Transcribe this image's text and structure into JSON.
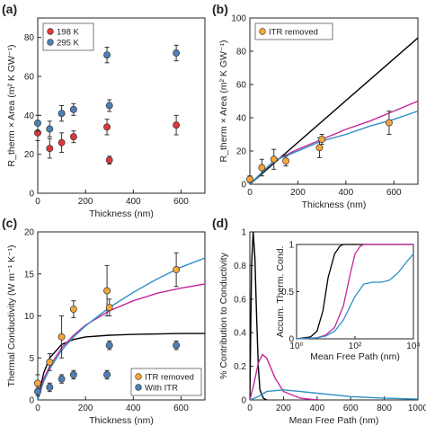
{
  "chart_data": [
    {
      "panel": "a",
      "label": "(a)",
      "type": "scatter",
      "xlabel": "Thickness (nm)",
      "ylabel": "R_therm × Area (m² K GW⁻¹)",
      "xlim": [
        0,
        700
      ],
      "ylim": [
        0,
        90
      ],
      "xticks": [
        0,
        200,
        400,
        600
      ],
      "yticks": [
        0,
        20,
        40,
        60,
        80
      ],
      "legend": "top-left",
      "series": [
        {
          "name": "198 K",
          "color": "#e0353a",
          "marker": "circle",
          "x": [
            0,
            50,
            100,
            150,
            290,
            300,
            580
          ],
          "y": [
            31,
            23,
            26,
            29,
            34,
            17,
            35
          ],
          "err": [
            4,
            5,
            5,
            3,
            4,
            2,
            5
          ]
        },
        {
          "name": "295 K",
          "color": "#4f7fb8",
          "marker": "circle",
          "x": [
            0,
            50,
            100,
            150,
            290,
            300,
            580
          ],
          "y": [
            36,
            33,
            41,
            43,
            71,
            45,
            72
          ],
          "err": [
            4,
            4,
            4,
            3,
            4,
            3,
            4
          ]
        }
      ]
    },
    {
      "panel": "b",
      "label": "(b)",
      "type": "scatter",
      "xlabel": "Thickness (nm)",
      "ylabel": "R_therm × Area (m² K GW⁻¹)",
      "xlim": [
        0,
        700
      ],
      "ylim": [
        0,
        100
      ],
      "xticks": [
        0,
        200,
        400,
        600
      ],
      "yticks": [
        0,
        20,
        40,
        60,
        80,
        100
      ],
      "legend": "top-left",
      "series": [
        {
          "name": "ITR removed",
          "color": "#f5a53a",
          "marker": "circle",
          "x": [
            0,
            50,
            100,
            150,
            290,
            300,
            580
          ],
          "y": [
            3,
            10,
            15,
            14,
            22,
            27,
            37
          ],
          "err": [
            2,
            5,
            6,
            3,
            6,
            3,
            7
          ]
        }
      ],
      "lines": [
        {
          "color": "#000000",
          "x": [
            0,
            700
          ],
          "y": [
            0,
            88
          ]
        },
        {
          "color": "#c2279c",
          "x": [
            0,
            100,
            200,
            300,
            400,
            500,
            600,
            700
          ],
          "y": [
            0,
            14,
            21,
            27,
            33,
            38,
            44,
            50
          ]
        },
        {
          "color": "#2f8fc8",
          "x": [
            0,
            100,
            200,
            300,
            400,
            500,
            600,
            700
          ],
          "y": [
            0,
            14,
            20,
            26,
            30,
            35,
            39,
            44
          ]
        }
      ]
    },
    {
      "panel": "c",
      "label": "(c)",
      "type": "scatter",
      "xlabel": "Thickness (nm)",
      "ylabel": "Thermal Conductivity (W m⁻¹ K⁻¹)",
      "xlim": [
        0,
        700
      ],
      "ylim": [
        0,
        20
      ],
      "xticks": [
        0,
        200,
        400,
        600
      ],
      "yticks": [
        0,
        5,
        10,
        15,
        20
      ],
      "legend": "bottom-right",
      "series": [
        {
          "name": "ITR removed",
          "color": "#f5a53a",
          "marker": "circle",
          "x": [
            0,
            50,
            100,
            150,
            290,
            300,
            580
          ],
          "y": [
            2,
            4.5,
            7.5,
            10.8,
            13,
            11,
            15.5
          ],
          "err": [
            1,
            1,
            2.5,
            1,
            3,
            1,
            2
          ]
        },
        {
          "name": "With ITR",
          "color": "#4f7fb8",
          "marker": "circle",
          "x": [
            0,
            50,
            100,
            150,
            290,
            300,
            580
          ],
          "y": [
            1,
            1.5,
            2.5,
            3,
            3,
            6.5,
            6.5
          ],
          "err": [
            0.5,
            0.5,
            0.5,
            0.5,
            0.5,
            0.5,
            0.5
          ]
        }
      ],
      "lines": [
        {
          "color": "#000000",
          "x": [
            0,
            25,
            50,
            100,
            150,
            200,
            300,
            400,
            500,
            600,
            700
          ],
          "y": [
            0,
            3.2,
            5,
            6.6,
            7.2,
            7.5,
            7.7,
            7.8,
            7.85,
            7.9,
            7.9
          ]
        },
        {
          "color": "#c2279c",
          "x": [
            0,
            25,
            50,
            100,
            150,
            200,
            300,
            400,
            500,
            600,
            700
          ],
          "y": [
            0,
            2.5,
            4,
            6.2,
            7.7,
            8.9,
            10.6,
            11.8,
            12.7,
            13.3,
            13.8
          ]
        },
        {
          "color": "#2f8fc8",
          "x": [
            0,
            25,
            50,
            100,
            150,
            200,
            300,
            400,
            500,
            600,
            700
          ],
          "y": [
            0,
            2.2,
            3.7,
            5.9,
            7.5,
            8.8,
            11,
            12.8,
            14.4,
            15.8,
            16.9
          ]
        }
      ]
    },
    {
      "panel": "d",
      "label": "(d)",
      "type": "line",
      "xlabel": "Mean Free Path (nm)",
      "ylabel": "% Contribution to Conductivity",
      "xlim": [
        0,
        1000
      ],
      "ylim": [
        0,
        1
      ],
      "xticks": [
        0,
        200,
        400,
        600,
        800,
        1000
      ],
      "yticks": [
        0,
        0.2,
        0.4,
        0.6,
        0.8,
        1
      ],
      "lines": [
        {
          "color": "#000000",
          "x": [
            0,
            10,
            20,
            30,
            40,
            50,
            60,
            80,
            100
          ],
          "y": [
            0,
            0.8,
            1.0,
            0.85,
            0.5,
            0.2,
            0.06,
            0.01,
            0
          ]
        },
        {
          "color": "#c2279c",
          "x": [
            0,
            25,
            50,
            75,
            100,
            125,
            150,
            200,
            300,
            400
          ],
          "y": [
            0,
            0.1,
            0.22,
            0.27,
            0.25,
            0.19,
            0.13,
            0.05,
            0.01,
            0
          ]
        },
        {
          "color": "#2f8fc8",
          "x": [
            0,
            50,
            100,
            200,
            300,
            400,
            500,
            600,
            800,
            1000
          ],
          "y": [
            0,
            0.02,
            0.05,
            0.06,
            0.05,
            0.04,
            0.03,
            0.02,
            0.01,
            0.005
          ]
        }
      ],
      "inset": {
        "type": "line",
        "xlabel": "Mean Free Path (nm)",
        "ylabel": "Accum. Therm. Cond.",
        "xscale": "log",
        "xlim": [
          1,
          10000
        ],
        "ylim": [
          0,
          1
        ],
        "yticks": [
          0,
          0.5,
          1
        ],
        "xtick_labels": [
          "10⁰",
          "10²",
          "10⁴"
        ],
        "lines": [
          {
            "color": "#000000",
            "x": [
              1,
              3,
              5,
              8,
              12,
              20,
              30,
              40,
              10000
            ],
            "y": [
              0,
              0.02,
              0.08,
              0.3,
              0.65,
              0.9,
              0.98,
              1.0,
              1.0
            ]
          },
          {
            "color": "#c2279c",
            "x": [
              1,
              5,
              10,
              20,
              40,
              70,
              100,
              150,
              200,
              10000
            ],
            "y": [
              0,
              0.01,
              0.04,
              0.12,
              0.35,
              0.7,
              0.9,
              0.98,
              1.0,
              1.0
            ]
          },
          {
            "color": "#2f8fc8",
            "x": [
              1,
              5,
              10,
              20,
              40,
              100,
              200,
              400,
              800,
              1500,
              3000,
              6000,
              10000
            ],
            "y": [
              0,
              0.01,
              0.03,
              0.08,
              0.2,
              0.45,
              0.58,
              0.6,
              0.6,
              0.62,
              0.7,
              0.82,
              0.9
            ]
          }
        ]
      }
    }
  ]
}
